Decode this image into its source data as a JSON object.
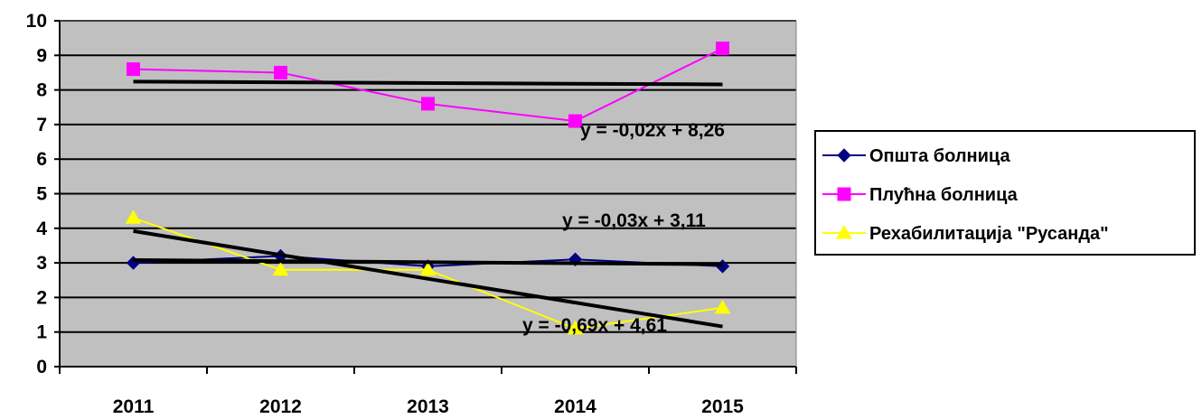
{
  "chart_data": {
    "type": "line",
    "categories": [
      "2011",
      "2012",
      "2013",
      "2014",
      "2015"
    ],
    "ylim": [
      0,
      10
    ],
    "yticks": [
      0,
      1,
      2,
      3,
      4,
      5,
      6,
      7,
      8,
      9,
      10
    ],
    "grid": true,
    "plot_background": "#c0c0c0",
    "legend_position": "right",
    "series": [
      {
        "name": "Општа болница",
        "values": [
          3.0,
          3.2,
          2.9,
          3.1,
          2.9
        ],
        "color": "#000080",
        "marker": "diamond"
      },
      {
        "name": "Плућна болница",
        "values": [
          8.6,
          8.5,
          7.6,
          7.1,
          9.2
        ],
        "color": "#ff00ff",
        "marker": "square"
      },
      {
        "name": "Рехабилитација \"Русанда\"",
        "values": [
          4.3,
          2.8,
          2.8,
          1.1,
          1.7
        ],
        "color": "#ffff00",
        "marker": "triangle"
      }
    ],
    "trendlines": [
      {
        "label": "y = -0,02x + 8,26",
        "slope": -0.02,
        "intercept": 8.26
      },
      {
        "label": "y = -0,03x + 3,11",
        "slope": -0.03,
        "intercept": 3.11
      },
      {
        "label": "y = -0,69x + 4,61",
        "slope": -0.69,
        "intercept": 4.61
      }
    ]
  }
}
